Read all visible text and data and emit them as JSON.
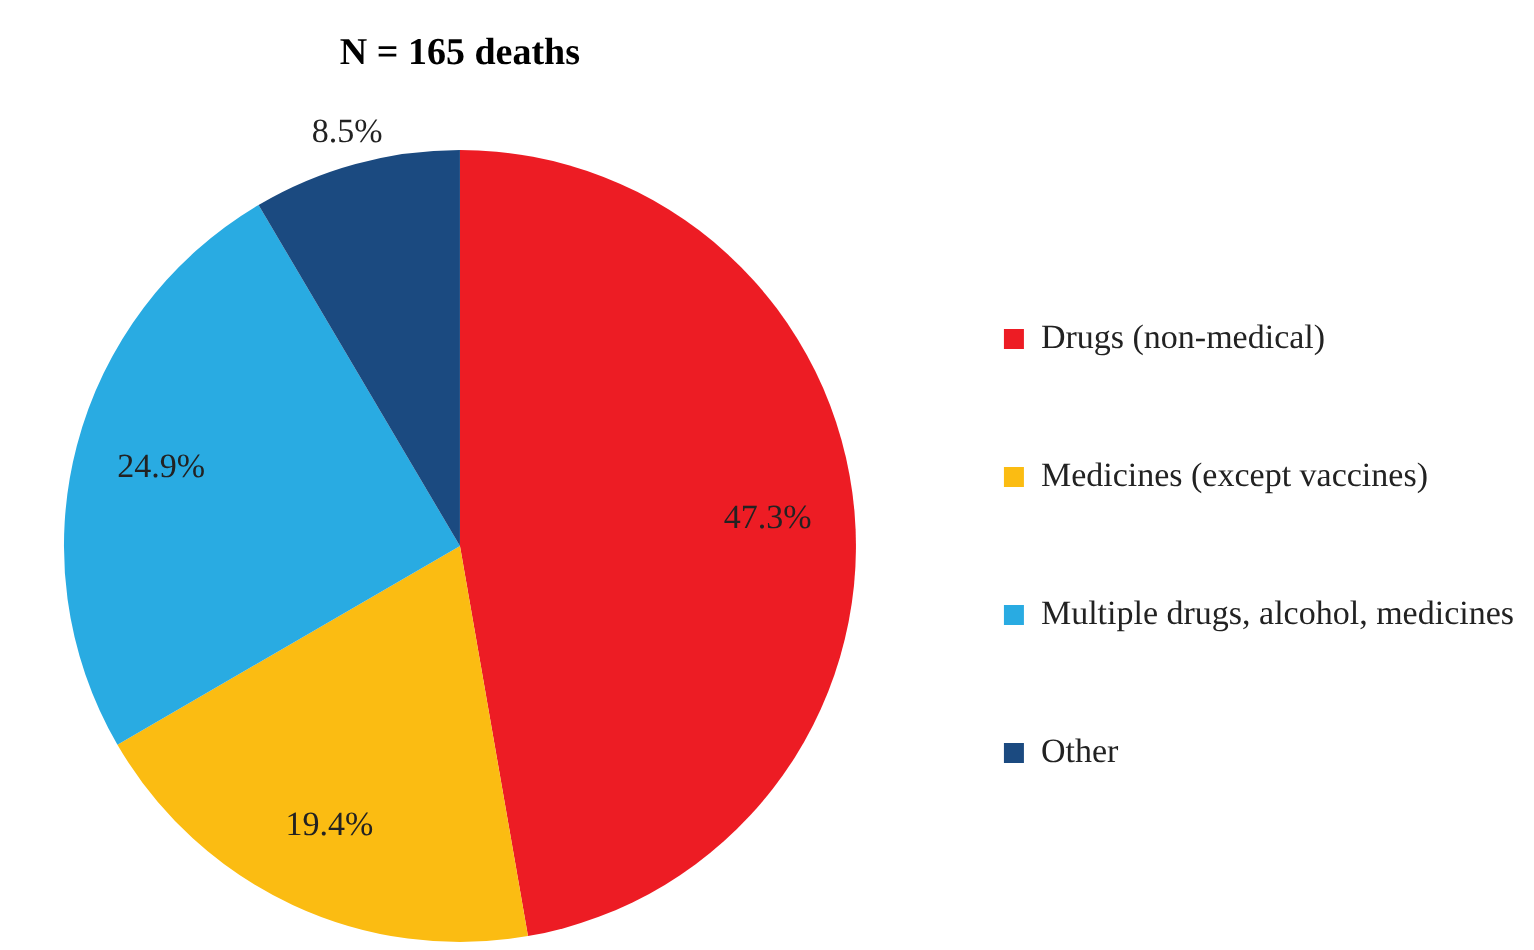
{
  "chart_data": {
    "type": "pie",
    "title": "N = 165 deaths",
    "categories": [
      "Drugs (non-medical)",
      "Medicines (except vaccines)",
      "Multiple drugs, alcohol, medicines",
      "Other"
    ],
    "values": [
      47.3,
      19.4,
      24.9,
      8.5
    ],
    "colors": [
      "#ed1c24",
      "#fbbc12",
      "#29abe2",
      "#1b4a80"
    ],
    "value_labels": [
      "47.3%",
      "19.4%",
      "24.9%",
      "8.5%"
    ],
    "legend": "right"
  }
}
